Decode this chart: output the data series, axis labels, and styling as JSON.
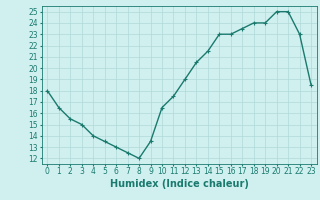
{
  "x": [
    0,
    1,
    2,
    3,
    4,
    5,
    6,
    7,
    8,
    9,
    10,
    11,
    12,
    13,
    14,
    15,
    16,
    17,
    18,
    19,
    20,
    21,
    22,
    23
  ],
  "y": [
    18,
    16.5,
    15.5,
    15,
    14,
    13.5,
    13,
    12.5,
    12,
    13.5,
    16.5,
    17.5,
    19,
    20.5,
    21.5,
    23,
    23,
    23.5,
    24,
    24,
    25,
    25,
    23,
    18.5
  ],
  "line_color": "#1a7a6e",
  "marker": "+",
  "marker_size": 3,
  "bg_color": "#d0f0f0",
  "grid_color": "#b0d8d8",
  "xlabel": "Humidex (Indice chaleur)",
  "xlim": [
    -0.5,
    23.5
  ],
  "ylim": [
    11.5,
    25.5
  ],
  "yticks": [
    12,
    13,
    14,
    15,
    16,
    17,
    18,
    19,
    20,
    21,
    22,
    23,
    24,
    25
  ],
  "xticks": [
    0,
    1,
    2,
    3,
    4,
    5,
    6,
    7,
    8,
    9,
    10,
    11,
    12,
    13,
    14,
    15,
    16,
    17,
    18,
    19,
    20,
    21,
    22,
    23
  ],
  "tick_label_fontsize": 5.5,
  "xlabel_fontsize": 7,
  "line_width": 1.0,
  "marker_edge_width": 0.8
}
